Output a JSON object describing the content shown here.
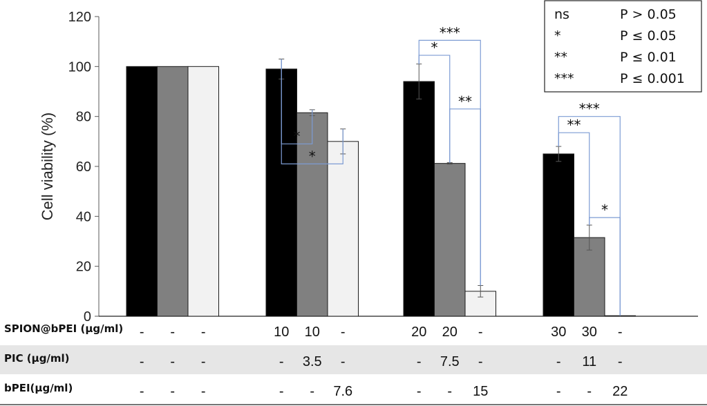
{
  "chart_data": {
    "type": "bar",
    "ylabel": "Cell viability (%)",
    "ylim": [
      0,
      120
    ],
    "yticks": [
      "0",
      "20",
      "40",
      "60",
      "80",
      "100",
      "120"
    ],
    "groups": [
      {
        "bars": [
          {
            "value": 100,
            "error": 0,
            "color": "#000000"
          },
          {
            "value": 100,
            "error": 0,
            "color": "#808080"
          },
          {
            "value": 100,
            "error": 0,
            "color": "#f2f2f2"
          }
        ]
      },
      {
        "bars": [
          {
            "value": 99,
            "error": 4,
            "color": "#000000"
          },
          {
            "value": 81.5,
            "error": 1.2,
            "color": "#808080"
          },
          {
            "value": 70,
            "error": 5,
            "color": "#f2f2f2"
          }
        ]
      },
      {
        "bars": [
          {
            "value": 94,
            "error": 7,
            "color": "#000000"
          },
          {
            "value": 61.2,
            "error": 0.3,
            "color": "#808080"
          },
          {
            "value": 10,
            "error": 2.3,
            "color": "#f2f2f2"
          }
        ]
      },
      {
        "bars": [
          {
            "value": 65,
            "error": 3,
            "color": "#000000"
          },
          {
            "value": 31.5,
            "error": 5,
            "color": "#808080"
          },
          {
            "value": 0.2,
            "error": 0,
            "color": "#f2f2f2"
          }
        ]
      }
    ],
    "significance": [
      {
        "group": 1,
        "from": 0,
        "to": 1,
        "level": 69,
        "label": "*"
      },
      {
        "group": 1,
        "from": 0,
        "to": 2,
        "level": 61,
        "label": "*"
      },
      {
        "group": 2,
        "from": 0,
        "to": 1,
        "level": 104.5,
        "label": "*"
      },
      {
        "group": 2,
        "from": 0,
        "to": 2,
        "level": 110.5,
        "label": "***"
      },
      {
        "group": 2,
        "from": 1,
        "to": 2,
        "level": 83,
        "label": "**"
      },
      {
        "group": 3,
        "from": 0,
        "to": 1,
        "level": 73.5,
        "label": "**"
      },
      {
        "group": 3,
        "from": 0,
        "to": 2,
        "level": 80,
        "label": "***"
      },
      {
        "group": 3,
        "from": 1,
        "to": 2,
        "level": 39.5,
        "label": "*"
      }
    ],
    "conditions": [
      {
        "label": "SPION@bPEI (μg/ml)",
        "values": [
          "-",
          "-",
          "-",
          "10",
          "10",
          "-",
          "20",
          "20",
          "-",
          "30",
          "30",
          "-"
        ]
      },
      {
        "label": "PIC (μg/ml)",
        "values": [
          "-",
          "-",
          "-",
          "-",
          "3.5",
          "-",
          "-",
          "7.5",
          "-",
          "-",
          "11",
          "-"
        ]
      },
      {
        "label": "bPEI(μg/ml)",
        "values": [
          "-",
          "-",
          "-",
          "-",
          "-",
          "7.6",
          "-",
          "-",
          "15",
          "-",
          "-",
          "22"
        ]
      }
    ]
  },
  "legend": {
    "rows": [
      {
        "symbol": "ns",
        "desc": "P > 0.05"
      },
      {
        "symbol": "*",
        "desc": "P ≤ 0.05"
      },
      {
        "symbol": "**",
        "desc": "P ≤ 0.01"
      },
      {
        "symbol": "***",
        "desc": "P ≤ 0.001"
      }
    ]
  },
  "colors": {
    "bracket": "#7c9bd3",
    "error_bar": "#555555",
    "axis": "#595959",
    "shaded_row": "#e6e6e6"
  }
}
